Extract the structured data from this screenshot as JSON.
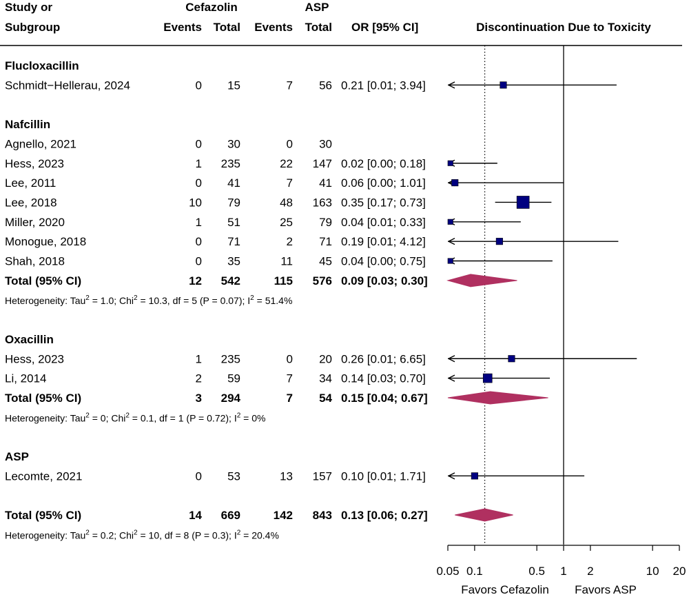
{
  "headers": {
    "study_line1": "Study or",
    "study_line2": "Subgroup",
    "group1": "Cefazolin",
    "group2": "ASP",
    "events": "Events",
    "total": "Total",
    "or_ci": "OR [95% CI]",
    "plot_title": "Discontinuation Due to Toxicity"
  },
  "chart_data": {
    "type": "forest",
    "title": "Discontinuation Due to Toxicity",
    "x_scale": "log",
    "xlim": [
      0.05,
      20
    ],
    "x_ticks": [
      0.05,
      0.1,
      0.5,
      1,
      2,
      10,
      20
    ],
    "x_tick_labels": [
      "0.05",
      "0.1",
      "0.5",
      "1",
      "2",
      "10",
      "20"
    ],
    "null_line": 1,
    "overall_line": 0.13,
    "favors_left": "Favors Cefazolin",
    "favors_right": "Favors ASP",
    "colors": {
      "square": "#000080",
      "diamond": "#B03060"
    },
    "rows": [
      {
        "kind": "group",
        "label": "Flucloxacillin"
      },
      {
        "kind": "study",
        "label": "Schmidt−Hellerau, 2024",
        "e1": "0",
        "n1": "15",
        "e2": "7",
        "n2": "56",
        "or_text": "0.21 [0.01; 3.94]",
        "or": 0.21,
        "lo": 0.01,
        "hi": 3.94,
        "weight": 0.9
      },
      {
        "kind": "blank"
      },
      {
        "kind": "group",
        "label": "Nafcillin"
      },
      {
        "kind": "study",
        "label": "Agnello, 2021",
        "e1": "0",
        "n1": "30",
        "e2": "0",
        "n2": "30",
        "or_text": ""
      },
      {
        "kind": "study",
        "label": "Hess, 2023",
        "e1": "1",
        "n1": "235",
        "e2": "22",
        "n2": "147",
        "or_text": "0.02 [0.00; 0.18]",
        "or": 0.02,
        "lo": 0.0,
        "hi": 0.18,
        "weight": 0.5
      },
      {
        "kind": "study",
        "label": "Lee, 2011",
        "e1": "0",
        "n1": "41",
        "e2": "7",
        "n2": "41",
        "or_text": "0.06 [0.00; 1.01]",
        "or": 0.06,
        "lo": 0.0,
        "hi": 1.01,
        "weight": 0.9
      },
      {
        "kind": "study",
        "label": "Lee, 2018",
        "e1": "10",
        "n1": "79",
        "e2": "48",
        "n2": "163",
        "or_text": "0.35 [0.17; 0.73]",
        "or": 0.35,
        "lo": 0.17,
        "hi": 0.73,
        "weight": 2.6
      },
      {
        "kind": "study",
        "label": "Miller, 2020",
        "e1": "1",
        "n1": "51",
        "e2": "25",
        "n2": "79",
        "or_text": "0.04 [0.01; 0.33]",
        "or": 0.04,
        "lo": 0.01,
        "hi": 0.33,
        "weight": 0.5
      },
      {
        "kind": "study",
        "label": "Monogue, 2018",
        "e1": "0",
        "n1": "71",
        "e2": "2",
        "n2": "71",
        "or_text": "0.19 [0.01; 4.12]",
        "or": 0.19,
        "lo": 0.01,
        "hi": 4.12,
        "weight": 0.9
      },
      {
        "kind": "study",
        "label": "Shah, 2018",
        "e1": "0",
        "n1": "35",
        "e2": "11",
        "n2": "45",
        "or_text": "0.04 [0.00; 0.75]",
        "or": 0.04,
        "lo": 0.0,
        "hi": 0.75,
        "weight": 0.5
      },
      {
        "kind": "total",
        "label": "Total (95% CI)",
        "e1": "12",
        "n1": "542",
        "e2": "115",
        "n2": "576",
        "or_text": "0.09 [0.03; 0.30]",
        "or": 0.09,
        "lo": 0.03,
        "hi": 0.3
      },
      {
        "kind": "het",
        "text": "Heterogeneity: Tau",
        "t2": " = 1.0; Chi",
        "t3": " = 10.3, df = 5 (P = 0.07); I",
        "t4": " = 51.4%"
      },
      {
        "kind": "blank"
      },
      {
        "kind": "group",
        "label": "Oxacillin"
      },
      {
        "kind": "study",
        "label": "Hess, 2023",
        "e1": "1",
        "n1": "235",
        "e2": "0",
        "n2": "20",
        "or_text": "0.26 [0.01; 6.65]",
        "or": 0.26,
        "lo": 0.01,
        "hi": 6.65,
        "weight": 0.9
      },
      {
        "kind": "study",
        "label": "Li, 2014",
        "e1": "2",
        "n1": "59",
        "e2": "7",
        "n2": "34",
        "or_text": "0.14 [0.03; 0.70]",
        "or": 0.14,
        "lo": 0.03,
        "hi": 0.7,
        "weight": 1.6
      },
      {
        "kind": "total",
        "label": "Total (95% CI)",
        "e1": "3",
        "n1": "294",
        "e2": "7",
        "n2": "54",
        "or_text": "0.15 [0.04; 0.67]",
        "or": 0.15,
        "lo": 0.04,
        "hi": 0.67
      },
      {
        "kind": "het",
        "text": "Heterogeneity: Tau",
        "t2": " = 0; Chi",
        "t3": " = 0.1, df = 1 (P = 0.72); I",
        "t4": " = 0%"
      },
      {
        "kind": "blank"
      },
      {
        "kind": "group",
        "label": "ASP"
      },
      {
        "kind": "study",
        "label": "Lecomte, 2021",
        "e1": "0",
        "n1": "53",
        "e2": "13",
        "n2": "157",
        "or_text": "0.10 [0.01; 1.71]",
        "or": 0.1,
        "lo": 0.01,
        "hi": 1.71,
        "weight": 0.9
      },
      {
        "kind": "blank"
      },
      {
        "kind": "total",
        "label": "Total (95% CI)",
        "e1": "14",
        "n1": "669",
        "e2": "142",
        "n2": "843",
        "or_text": "0.13 [0.06; 0.27]",
        "or": 0.13,
        "lo": 0.06,
        "hi": 0.27
      },
      {
        "kind": "het",
        "text": "Heterogeneity: Tau",
        "t2": " = 0.2; Chi",
        "t3": " = 10, df = 8 (P = 0.3); I",
        "t4": " = 20.4%"
      }
    ]
  }
}
